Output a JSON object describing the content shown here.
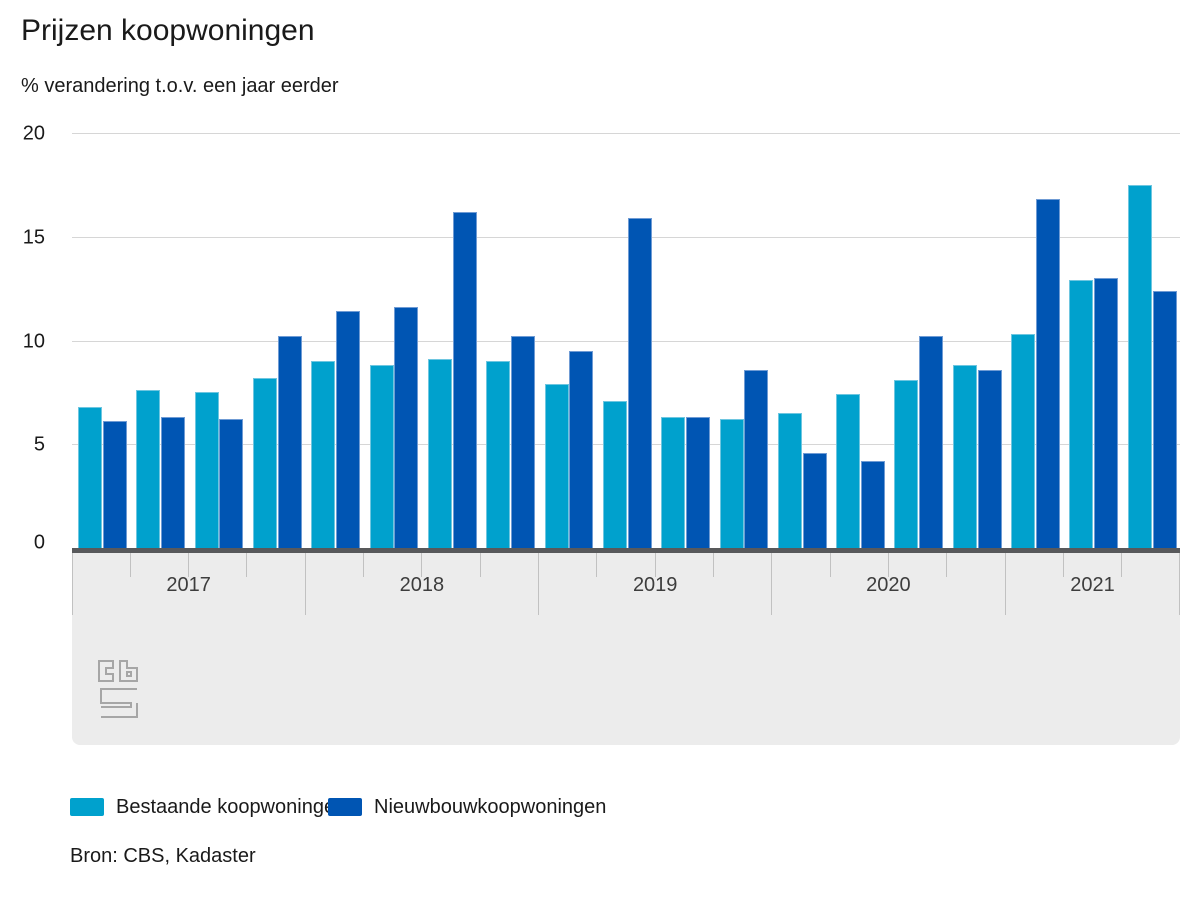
{
  "title": "Prijzen koopwoningen",
  "subtitle": "% verandering t.o.v. een jaar eerder",
  "source": "Bron: CBS, Kadaster",
  "legend": [
    {
      "label": "Bestaande koopwoningen",
      "color": "#00a1cd"
    },
    {
      "label": "Nieuwbouwkoopwoningen",
      "color": "#0055b3"
    }
  ],
  "colors": {
    "existing_bar": "#00a1cd",
    "existing_bar_edge": "#6ec6e0",
    "newbuild_bar": "#0055b3",
    "newbuild_bar_edge": "#6f9bd4",
    "gridline": "#d6d6d6",
    "baseline": "#58595b",
    "axis_band": "#ececec",
    "tick": "#c1c1c1",
    "logo": "#a6a6a6"
  },
  "chart_data": {
    "type": "bar",
    "title": "Prijzen koopwoningen",
    "ylabel": "% verandering t.o.v. een jaar eerder",
    "xlabel": "",
    "ylim": [
      0,
      20
    ],
    "yticks": [
      0,
      5,
      10,
      15,
      20
    ],
    "grid": true,
    "legend_position": "bottom",
    "categories": [
      "2017 Q1",
      "2017 Q2",
      "2017 Q3",
      "2017 Q4",
      "2018 Q1",
      "2018 Q2",
      "2018 Q3",
      "2018 Q4",
      "2019 Q1",
      "2019 Q2",
      "2019 Q3",
      "2019 Q4",
      "2020 Q1",
      "2020 Q2",
      "2020 Q3",
      "2020 Q4",
      "2021 Q1",
      "2021 Q2",
      "2021 Q3"
    ],
    "x_groups": [
      {
        "label": "2017",
        "quarters": 4
      },
      {
        "label": "2018",
        "quarters": 4
      },
      {
        "label": "2019",
        "quarters": 4
      },
      {
        "label": "2020",
        "quarters": 4
      },
      {
        "label": "2021",
        "quarters": 3
      }
    ],
    "series": [
      {
        "name": "Bestaande koopwoningen",
        "values": [
          6.8,
          7.6,
          7.5,
          8.2,
          9.0,
          8.8,
          9.1,
          9.0,
          7.9,
          7.1,
          6.3,
          6.2,
          6.5,
          7.4,
          8.1,
          8.8,
          10.3,
          12.9,
          17.5
        ]
      },
      {
        "name": "Nieuwbouwkoopwoningen",
        "values": [
          6.1,
          6.3,
          6.2,
          10.2,
          11.4,
          11.6,
          16.2,
          10.2,
          9.5,
          15.9,
          6.3,
          8.6,
          4.6,
          4.2,
          10.2,
          8.6,
          16.8,
          13.0,
          12.4
        ]
      }
    ]
  }
}
